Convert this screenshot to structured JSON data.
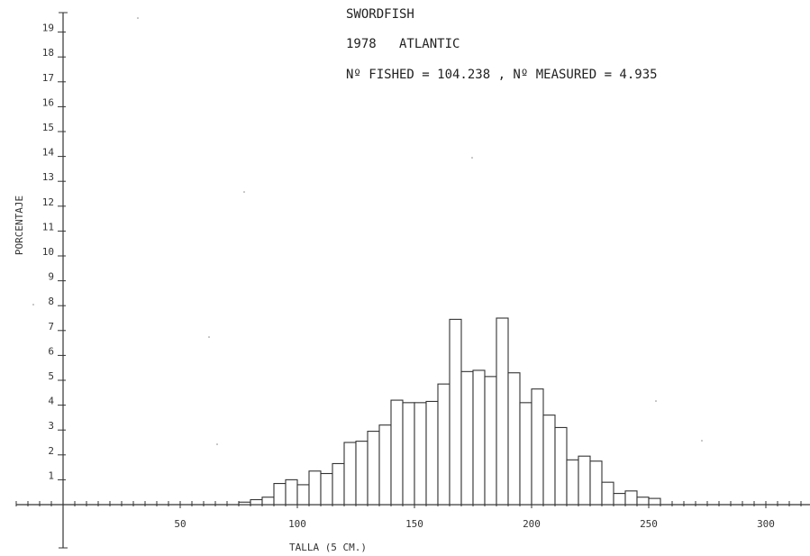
{
  "header": {
    "line1": "SWORDFISH",
    "line2": "1978   ATLANTIC",
    "line3": "Nº FISHED = 104.238 , Nº MEASURED = 4.935"
  },
  "chart_data": {
    "type": "bar",
    "title": "SWORDFISH",
    "subtitle": "1978 ATLANTIC — Nº FISHED = 104.238 , Nº MEASURED = 4.935",
    "xlabel": "TALLA (5 CM.)",
    "ylabel": "PORCENTAJE",
    "xlim": [
      -20,
      320
    ],
    "ylim": [
      0,
      20
    ],
    "x_ticks": [
      50,
      100,
      150,
      200,
      250,
      300
    ],
    "x_tick_labels": [
      "50",
      "100",
      "150",
      "200",
      "250",
      "300"
    ],
    "y_ticks": [
      1,
      2,
      3,
      4,
      5,
      6,
      7,
      8,
      9,
      10,
      11,
      12,
      13,
      14,
      15,
      16,
      17,
      18,
      19
    ],
    "y_tick_labels": [
      "1",
      "2",
      "3",
      "4",
      "5",
      "6",
      "7",
      "8",
      "9",
      "10",
      "11",
      "12",
      "13",
      "14",
      "15",
      "16",
      "17",
      "18",
      "19"
    ],
    "bin_width": 5,
    "grid": false,
    "categories": [
      75,
      80,
      85,
      90,
      95,
      100,
      105,
      110,
      115,
      120,
      125,
      130,
      135,
      140,
      145,
      150,
      155,
      160,
      165,
      170,
      175,
      180,
      185,
      190,
      195,
      200,
      205,
      210,
      215,
      220,
      225,
      230,
      235,
      240,
      245,
      250
    ],
    "values": [
      0.1,
      0.2,
      0.3,
      0.85,
      1.0,
      0.8,
      1.35,
      1.25,
      1.65,
      2.5,
      2.55,
      2.95,
      3.2,
      4.2,
      4.1,
      4.1,
      4.15,
      4.85,
      7.45,
      5.35,
      5.4,
      5.15,
      7.5,
      5.3,
      4.1,
      4.65,
      3.6,
      3.1,
      1.8,
      1.95,
      1.75,
      0.9,
      0.45,
      0.55,
      0.3,
      0.25
    ]
  }
}
